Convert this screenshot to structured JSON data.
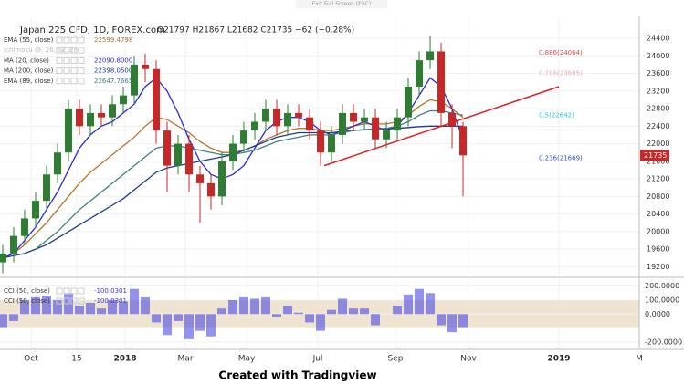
{
  "header": "Exit Full Screen (ESC)",
  "footer": "Created with Tradingview",
  "chart_data": [
    {
      "type": "candlestick",
      "title": "Japan 225 CFD, 1D, FOREX.com",
      "subtitle": "O21797 H21867 L21682 C21735 −62 (−0.28%)",
      "up_color": "#2e7d32",
      "down_color": "#c62828",
      "open": [
        19300,
        19500,
        19900,
        20300,
        20700,
        21300,
        21800,
        22800,
        22400,
        22700,
        22600,
        22900,
        23100,
        23800,
        23700,
        22300,
        21500,
        22000,
        21300,
        21100,
        20800,
        21600,
        22000,
        22300,
        22500,
        22800,
        22400,
        22700,
        22600,
        22300,
        21800,
        22200,
        22700,
        22500,
        22600,
        22100,
        22300,
        22600,
        23300,
        23900,
        24100,
        22700,
        22400
      ],
      "high": [
        19700,
        20100,
        20500,
        20900,
        21500,
        22000,
        23000,
        23000,
        22900,
        22900,
        23100,
        23300,
        24000,
        24050,
        23900,
        22500,
        22200,
        22200,
        21500,
        21300,
        21800,
        22200,
        22500,
        22700,
        23000,
        23000,
        22900,
        22900,
        22800,
        22500,
        22400,
        22900,
        22900,
        22800,
        22800,
        22500,
        22800,
        23500,
        24100,
        24450,
        24300,
        22900,
        22500
      ],
      "low": [
        19050,
        19300,
        19700,
        20100,
        20500,
        21100,
        21600,
        22200,
        22200,
        22400,
        22400,
        22700,
        22900,
        23400,
        22000,
        20900,
        21300,
        20900,
        20200,
        20500,
        20600,
        21400,
        21800,
        22100,
        22300,
        22200,
        22200,
        22400,
        22100,
        21500,
        21600,
        22000,
        22300,
        22300,
        21900,
        21900,
        22100,
        22400,
        23100,
        23700,
        22400,
        21900,
        20800
      ],
      "close": [
        19500,
        19900,
        20300,
        20700,
        21300,
        21800,
        22800,
        22400,
        22700,
        22600,
        22900,
        23100,
        23800,
        23700,
        22300,
        21500,
        22000,
        21300,
        21100,
        20800,
        21600,
        22000,
        22300,
        22500,
        22800,
        22400,
        22700,
        22600,
        22300,
        21800,
        22200,
        22700,
        22500,
        22600,
        22100,
        22300,
        22600,
        23300,
        23900,
        24100,
        22700,
        22400,
        21735
      ],
      "series": [
        {
          "name": "EMA (55, close)",
          "legend_value": "22599.4798",
          "color": "#b8742a",
          "values": [
            null,
            19500,
            19700,
            19950,
            20200,
            20500,
            20800,
            21100,
            21350,
            21550,
            21750,
            21950,
            22150,
            22400,
            22600,
            22550,
            22400,
            22250,
            22050,
            21900,
            21800,
            21800,
            21850,
            21950,
            22100,
            22200,
            22300,
            22350,
            22350,
            22300,
            22300,
            22350,
            22400,
            22450,
            22450,
            22450,
            22500,
            22650,
            22850,
            23000,
            22950,
            22800,
            22599
          ]
        },
        {
          "name": "Ichimoku (9, 26, 52, 26)",
          "color": "#b0b0b0",
          "values": []
        },
        {
          "name": "MA (20, close)",
          "legend_value": "22090.8000",
          "color": "#2a2ad6",
          "values": [
            19400,
            19500,
            19800,
            20100,
            20500,
            20900,
            21400,
            21900,
            22200,
            22400,
            22500,
            22700,
            22900,
            23300,
            23500,
            23200,
            22700,
            22100,
            21600,
            21300,
            21200,
            21300,
            21500,
            21900,
            22300,
            22500,
            22600,
            22600,
            22500,
            22300,
            22200,
            22300,
            22400,
            22500,
            22400,
            22300,
            22400,
            22700,
            23100,
            23500,
            23300,
            22800,
            22090
          ]
        },
        {
          "name": "MA (200, close)",
          "legend_value": "22398.0500",
          "color": "#1b3b8a",
          "values": [
            19400,
            19450,
            19500,
            19600,
            19700,
            19850,
            20000,
            20150,
            20300,
            20450,
            20600,
            20750,
            20950,
            21150,
            21350,
            21450,
            21500,
            21550,
            21600,
            21650,
            21700,
            21750,
            21850,
            21950,
            22050,
            22150,
            22200,
            22250,
            22250,
            22250,
            22250,
            22280,
            22300,
            22320,
            22330,
            22340,
            22350,
            22370,
            22390,
            22400,
            22400,
            22400,
            22398
          ]
        },
        {
          "name": "EMA (89, close)",
          "legend_value": "22647.7665",
          "color": "#3f7f7f",
          "values": [
            null,
            null,
            null,
            19600,
            19800,
            20000,
            20250,
            20500,
            20700,
            20900,
            21100,
            21300,
            21500,
            21700,
            21900,
            21950,
            21950,
            21900,
            21850,
            21800,
            21750,
            21750,
            21800,
            21850,
            21950,
            22050,
            22100,
            22150,
            22200,
            22200,
            22200,
            22250,
            22300,
            22320,
            22340,
            22350,
            22400,
            22500,
            22650,
            22750,
            22750,
            22700,
            22647
          ]
        }
      ],
      "trendline": {
        "x": [
          29.33,
          50.75
        ],
        "y": [
          21500,
          23300
        ],
        "color": "#e02020"
      },
      "fib_levels": [
        {
          "label": "0.886(24064)",
          "value": 24064,
          "color": "#e04848"
        },
        {
          "label": "0.786(23605)",
          "value": 23605,
          "color": "#f0b0b0"
        },
        {
          "label": "0.5(22642)",
          "value": 22642,
          "color": "#20c8e0"
        },
        {
          "label": "0.236(21669)",
          "value": 21669,
          "color": "#3050d0"
        }
      ],
      "last_price": 21735,
      "xlim": [
        -0.25,
        58.08
      ],
      "xticks": [
        {
          "value": 2.58,
          "label": "Oct"
        },
        {
          "value": 6.75,
          "label": "15"
        },
        {
          "value": 11.17,
          "label": "2018"
        },
        {
          "value": 16.67,
          "label": "Mar"
        },
        {
          "value": 22.25,
          "label": "May"
        },
        {
          "value": 28.75,
          "label": "Jul"
        },
        {
          "value": 35.83,
          "label": "Sep"
        },
        {
          "value": 42.5,
          "label": "Nov"
        },
        {
          "value": 50.75,
          "label": "2019"
        },
        {
          "value": 58.08,
          "label": "M"
        }
      ],
      "ylim": [
        19000,
        24650
      ],
      "yticks": [
        19200,
        19600,
        20000,
        20400,
        20800,
        21200,
        21600,
        22000,
        22400,
        22800,
        23200,
        23600,
        24000,
        24400
      ],
      "grid": true
    },
    {
      "type": "bar",
      "legends": [
        {
          "name": "CCI (50, close)",
          "value": -100.0301
        },
        {
          "name": "CCI (50, close)",
          "value": -100.0301
        }
      ],
      "color": "#3a3adf",
      "band": [
        -100,
        100
      ],
      "band_color": "#efe4d2",
      "values": [
        -100,
        -50,
        100,
        120,
        130,
        100,
        150,
        60,
        80,
        40,
        100,
        90,
        180,
        120,
        -60,
        -150,
        -50,
        -180,
        -120,
        -160,
        40,
        100,
        120,
        110,
        120,
        -20,
        60,
        10,
        -60,
        -120,
        30,
        110,
        40,
        40,
        -80,
        0,
        60,
        140,
        180,
        150,
        -80,
        -130,
        -100.0301
      ],
      "ylim": [
        -240,
        250
      ],
      "yticks": [
        {
          "value": 200,
          "label": "200.0000"
        },
        {
          "value": 100,
          "label": "100.0000"
        },
        {
          "value": 0,
          "label": "0.0000"
        },
        {
          "value": -200,
          "label": "-200.0000"
        }
      ],
      "grid": true
    }
  ]
}
